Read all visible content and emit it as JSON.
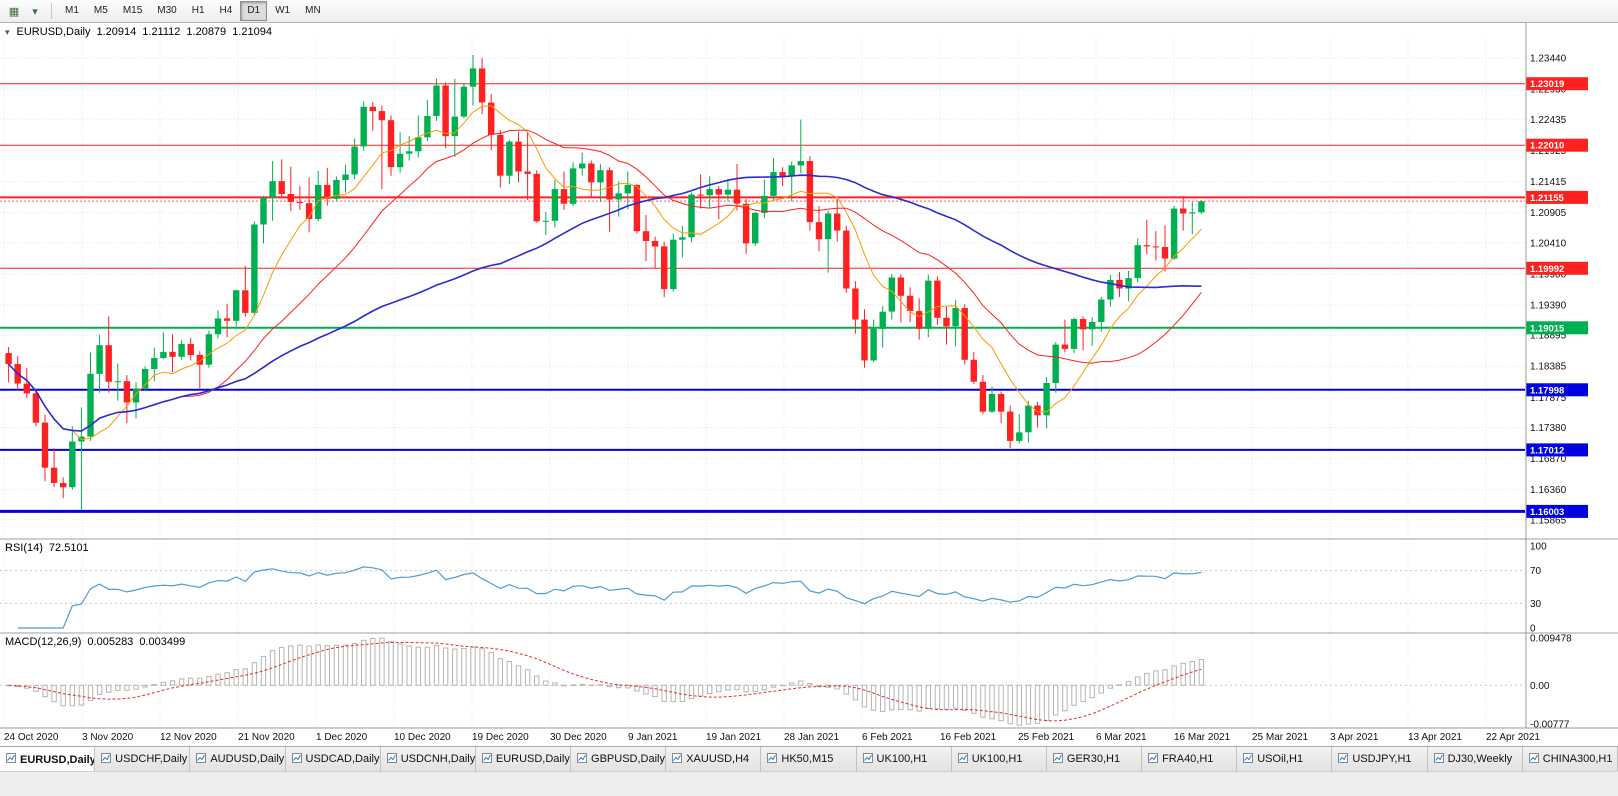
{
  "toolbar": {
    "left_icons": [
      {
        "name": "charts-menu-icon",
        "glyph": "▦"
      },
      {
        "name": "chart-dropdown-icon",
        "glyph": "▾"
      }
    ],
    "timeframes": [
      "M1",
      "M5",
      "M15",
      "M30",
      "H1",
      "H4",
      "D1",
      "W1",
      "MN"
    ],
    "active_timeframe": "D1"
  },
  "chart_title": {
    "collapse_icon": "▾",
    "symbol": "EURUSD,Daily",
    "open": "1.20914",
    "high": "1.21112",
    "low": "1.20879",
    "close": "1.21094"
  },
  "indicators": {
    "rsi": {
      "label": "RSI(14)",
      "value": "72.5101",
      "period": 14,
      "axis_labels": [
        "100",
        "70",
        "30",
        "0"
      ],
      "levels": [
        70,
        30
      ],
      "color": "#4f9bd5"
    },
    "macd": {
      "label": "MACD(12,26,9)",
      "value_main": "0.005283",
      "value_signal": "0.003499",
      "fast": 12,
      "slow": 26,
      "signal": 9,
      "axis_labels": [
        "0.009478",
        "0.00",
        "-0.00777"
      ],
      "axis_values": [
        0.009478,
        0,
        -0.00777
      ],
      "histogram_color": "#b4b4b4",
      "signal_color": "#e03030"
    }
  },
  "chart_data": {
    "type": "candlestick",
    "symbol": "EURUSD",
    "timeframe": "Daily",
    "current_bar": {
      "open": 1.20914,
      "high": 1.21112,
      "low": 1.20879,
      "close": 1.21094
    },
    "y_range": [
      1.156,
      1.2372
    ],
    "bull_color": "#00b050",
    "bear_color": "#ff2020",
    "price_axis_labels": [
      "1.23440",
      "1.22930",
      "1.22435",
      "1.21925",
      "1.21415",
      "1.20905",
      "1.20410",
      "1.19900",
      "1.19390",
      "1.18895",
      "1.18385",
      "1.17875",
      "1.17380",
      "1.16870",
      "1.16360",
      "1.15865"
    ],
    "x_labels": [
      "24 Oct 2020",
      "3 Nov 2020",
      "12 Nov 2020",
      "21 Nov 2020",
      "1 Dec 2020",
      "10 Dec 2020",
      "19 Dec 2020",
      "30 Dec 2020",
      "9 Jan 2021",
      "19 Jan 2021",
      "28 Jan 2021",
      "6 Feb 2021",
      "16 Feb 2021",
      "25 Feb 2021",
      "6 Mar 2021",
      "16 Mar 2021",
      "25 Mar 2021",
      "3 Apr 2021",
      "13 Apr 2021",
      "22 Apr 2021"
    ],
    "horizontal_lines": [
      {
        "price": 1.23019,
        "label": "1.23019",
        "color": "#ff2020",
        "width": 1
      },
      {
        "price": 1.2201,
        "label": "1.22010",
        "color": "#ff2020",
        "width": 1
      },
      {
        "price": 1.21155,
        "label": "1.21155",
        "color": "#ff2020",
        "width": 2
      },
      {
        "price": 1.19992,
        "label": "1.19992",
        "color": "#ff2020",
        "width": 1
      },
      {
        "price": 1.19015,
        "label": "1.19015",
        "color": "#00b050",
        "width": 2
      },
      {
        "price": 1.17998,
        "label": "1.17998",
        "color": "#0000e0",
        "width": 2
      },
      {
        "price": 1.17012,
        "label": "1.17012",
        "color": "#0000e0",
        "width": 2
      },
      {
        "price": 1.16003,
        "label": "1.16003",
        "color": "#0000e0",
        "width": 3
      }
    ],
    "moving_averages": [
      {
        "period": 8,
        "color": "#ff9900",
        "width": 1
      },
      {
        "period": 20,
        "color": "#ff2020",
        "width": 1
      },
      {
        "period": 55,
        "color": "#2b2bd0",
        "width": 1.6
      }
    ],
    "ohlc": [
      [
        1.186,
        1.187,
        1.1812,
        1.1842
      ],
      [
        1.1842,
        1.1855,
        1.18,
        1.181
      ],
      [
        1.181,
        1.1836,
        1.1786,
        1.1794
      ],
      [
        1.1794,
        1.1802,
        1.174,
        1.1746
      ],
      [
        1.1746,
        1.1759,
        1.165,
        1.1672
      ],
      [
        1.1672,
        1.1704,
        1.164,
        1.1647
      ],
      [
        1.1647,
        1.1656,
        1.1622,
        1.164
      ],
      [
        1.164,
        1.174,
        1.1636,
        1.1715
      ],
      [
        1.1715,
        1.1771,
        1.1603,
        1.1723
      ],
      [
        1.1723,
        1.1861,
        1.1716,
        1.1826
      ],
      [
        1.1826,
        1.189,
        1.1795,
        1.1873
      ],
      [
        1.1873,
        1.192,
        1.1795,
        1.1813
      ],
      [
        1.1813,
        1.1843,
        1.1782,
        1.1814
      ],
      [
        1.1814,
        1.1824,
        1.1745,
        1.1779
      ],
      [
        1.1779,
        1.1812,
        1.1753,
        1.1802
      ],
      [
        1.1802,
        1.1838,
        1.1799,
        1.1834
      ],
      [
        1.1834,
        1.1869,
        1.1814,
        1.1852
      ],
      [
        1.1852,
        1.1894,
        1.185,
        1.1862
      ],
      [
        1.1862,
        1.1891,
        1.1829,
        1.1854
      ],
      [
        1.1854,
        1.1882,
        1.1849,
        1.1875
      ],
      [
        1.1875,
        1.1885,
        1.1848,
        1.1857
      ],
      [
        1.1857,
        1.1863,
        1.18,
        1.1841
      ],
      [
        1.1841,
        1.1897,
        1.1836,
        1.1891
      ],
      [
        1.1891,
        1.193,
        1.1884,
        1.1917
      ],
      [
        1.1917,
        1.1941,
        1.1886,
        1.1913
      ],
      [
        1.1913,
        1.1964,
        1.1904,
        1.1963
      ],
      [
        1.1963,
        1.2003,
        1.192,
        1.1926
      ],
      [
        1.1926,
        1.2076,
        1.1923,
        1.2071
      ],
      [
        1.2071,
        1.2118,
        1.204,
        1.2115
      ],
      [
        1.2115,
        1.2175,
        1.2077,
        1.2142
      ],
      [
        1.2142,
        1.2178,
        1.2117,
        1.2121
      ],
      [
        1.2121,
        1.2166,
        1.2093,
        1.2108
      ],
      [
        1.2108,
        1.2134,
        1.2095,
        1.2106
      ],
      [
        1.2106,
        1.2148,
        1.2058,
        1.208
      ],
      [
        1.208,
        1.2159,
        1.2076,
        1.2136
      ],
      [
        1.2136,
        1.2164,
        1.2102,
        1.2113
      ],
      [
        1.2113,
        1.215,
        1.211,
        1.2144
      ],
      [
        1.2144,
        1.2169,
        1.2123,
        1.2153
      ],
      [
        1.2153,
        1.2212,
        1.2145,
        1.2199
      ],
      [
        1.2199,
        1.2273,
        1.2192,
        1.2264
      ],
      [
        1.2264,
        1.2272,
        1.2225,
        1.2257
      ],
      [
        1.2257,
        1.2266,
        1.2129,
        1.2242
      ],
      [
        1.2242,
        1.225,
        1.2151,
        1.2165
      ],
      [
        1.2165,
        1.2222,
        1.2156,
        1.2187
      ],
      [
        1.2187,
        1.2216,
        1.2176,
        1.2191
      ],
      [
        1.2191,
        1.225,
        1.2181,
        1.2214
      ],
      [
        1.2214,
        1.2275,
        1.2208,
        1.2249
      ],
      [
        1.2249,
        1.231,
        1.2241,
        1.2299
      ],
      [
        1.2299,
        1.2304,
        1.2196,
        1.2216
      ],
      [
        1.2216,
        1.231,
        1.2182,
        1.2248
      ],
      [
        1.2248,
        1.2303,
        1.2245,
        1.2297
      ],
      [
        1.2297,
        1.2349,
        1.2266,
        1.2327
      ],
      [
        1.2327,
        1.2344,
        1.2252,
        1.2271
      ],
      [
        1.2271,
        1.2285,
        1.2193,
        1.2218
      ],
      [
        1.2218,
        1.2226,
        1.2132,
        1.2151
      ],
      [
        1.2151,
        1.221,
        1.2137,
        1.2207
      ],
      [
        1.2207,
        1.2223,
        1.214,
        1.2158
      ],
      [
        1.2158,
        1.2222,
        1.2111,
        1.2154
      ],
      [
        1.2154,
        1.216,
        1.2074,
        1.2076
      ],
      [
        1.2076,
        1.2092,
        1.2054,
        1.2077
      ],
      [
        1.2077,
        1.2144,
        1.2066,
        1.2129
      ],
      [
        1.2129,
        1.2158,
        1.2095,
        1.2105
      ],
      [
        1.2105,
        1.2173,
        1.2101,
        1.2163
      ],
      [
        1.2163,
        1.2189,
        1.2151,
        1.2171
      ],
      [
        1.2171,
        1.2176,
        1.2116,
        1.214
      ],
      [
        1.214,
        1.217,
        1.2108,
        1.216
      ],
      [
        1.216,
        1.2165,
        1.2059,
        1.2112
      ],
      [
        1.2112,
        1.2142,
        1.2084,
        1.2122
      ],
      [
        1.2122,
        1.2158,
        1.2096,
        1.2136
      ],
      [
        1.2136,
        1.2137,
        1.2056,
        1.206
      ],
      [
        1.206,
        1.2087,
        1.2011,
        1.2044
      ],
      [
        1.2044,
        1.2051,
        1.1999,
        1.2035
      ],
      [
        1.2035,
        1.2043,
        1.1952,
        1.1965
      ],
      [
        1.1965,
        1.2056,
        1.1961,
        1.2046
      ],
      [
        1.2046,
        1.2069,
        1.2017,
        1.205
      ],
      [
        1.205,
        1.2123,
        1.2042,
        1.212
      ],
      [
        1.212,
        1.2153,
        1.2097,
        1.2119
      ],
      [
        1.2119,
        1.215,
        1.2099,
        1.2129
      ],
      [
        1.2129,
        1.2134,
        1.208,
        1.212
      ],
      [
        1.212,
        1.2145,
        1.2109,
        1.2128
      ],
      [
        1.2128,
        1.217,
        1.2094,
        1.2105
      ],
      [
        1.2105,
        1.2113,
        1.2023,
        1.204
      ],
      [
        1.204,
        1.2092,
        1.2036,
        1.209
      ],
      [
        1.209,
        1.2145,
        1.2082,
        1.2118
      ],
      [
        1.2118,
        1.218,
        1.211,
        1.2157
      ],
      [
        1.2157,
        1.2165,
        1.2134,
        1.215
      ],
      [
        1.215,
        1.2174,
        1.2109,
        1.2168
      ],
      [
        1.2168,
        1.2243,
        1.2155,
        1.2175
      ],
      [
        1.2175,
        1.2183,
        1.2061,
        1.2075
      ],
      [
        1.2075,
        1.2101,
        1.2027,
        1.2047
      ],
      [
        1.2047,
        1.2094,
        1.1992,
        1.2089
      ],
      [
        1.2089,
        1.2113,
        1.2043,
        1.2061
      ],
      [
        1.2061,
        1.2069,
        1.1959,
        1.1966
      ],
      [
        1.1966,
        1.1978,
        1.1892,
        1.1915
      ],
      [
        1.1915,
        1.1932,
        1.1836,
        1.1848
      ],
      [
        1.1848,
        1.1915,
        1.1845,
        1.19
      ],
      [
        1.19,
        1.1937,
        1.1869,
        1.1928
      ],
      [
        1.1928,
        1.199,
        1.1915,
        1.1984
      ],
      [
        1.1984,
        1.1989,
        1.191,
        1.1954
      ],
      [
        1.1954,
        1.1968,
        1.1911,
        1.1929
      ],
      [
        1.1929,
        1.195,
        1.1882,
        1.19
      ],
      [
        1.19,
        1.1989,
        1.1886,
        1.1979
      ],
      [
        1.1979,
        1.1986,
        1.1906,
        1.1918
      ],
      [
        1.1918,
        1.1936,
        1.1874,
        1.1904
      ],
      [
        1.1904,
        1.1947,
        1.1871,
        1.1934
      ],
      [
        1.1934,
        1.194,
        1.1841,
        1.1849
      ],
      [
        1.1849,
        1.1862,
        1.1809,
        1.1813
      ],
      [
        1.1813,
        1.1824,
        1.176,
        1.1764
      ],
      [
        1.1764,
        1.1805,
        1.1762,
        1.1793
      ],
      [
        1.1793,
        1.1797,
        1.1745,
        1.1764
      ],
      [
        1.1764,
        1.1774,
        1.1704,
        1.1716
      ],
      [
        1.1716,
        1.176,
        1.1712,
        1.173
      ],
      [
        1.173,
        1.1782,
        1.1713,
        1.1774
      ],
      [
        1.1774,
        1.178,
        1.1738,
        1.1758
      ],
      [
        1.1758,
        1.1821,
        1.1737,
        1.1811
      ],
      [
        1.1811,
        1.1878,
        1.1795,
        1.1874
      ],
      [
        1.1874,
        1.1915,
        1.1861,
        1.1867
      ],
      [
        1.1867,
        1.1918,
        1.186,
        1.1916
      ],
      [
        1.1916,
        1.192,
        1.1865,
        1.1899
      ],
      [
        1.1899,
        1.1919,
        1.1872,
        1.1911
      ],
      [
        1.1911,
        1.1952,
        1.1895,
        1.1948
      ],
      [
        1.1948,
        1.1988,
        1.1936,
        1.198
      ],
      [
        1.198,
        1.1993,
        1.1952,
        1.1966
      ],
      [
        1.1966,
        1.1995,
        1.1945,
        1.1983
      ],
      [
        1.1983,
        1.2048,
        1.1976,
        1.2037
      ],
      [
        1.2037,
        1.2079,
        1.2022,
        1.2035
      ],
      [
        1.2035,
        1.206,
        1.2012,
        1.2034
      ],
      [
        1.2034,
        1.207,
        1.1994,
        1.2015
      ],
      [
        1.2015,
        1.2101,
        1.2013,
        1.2097
      ],
      [
        1.2097,
        1.2117,
        1.2061,
        1.2089
      ],
      [
        1.2089,
        1.2108,
        1.2055,
        1.2091
      ],
      [
        1.2091,
        1.2111,
        1.2088,
        1.2109
      ]
    ]
  },
  "bottom_tabs": [
    {
      "label": "EURUSD,Daily",
      "active": true
    },
    {
      "label": "USDCHF,Daily",
      "active": false
    },
    {
      "label": "AUDUSD,Daily",
      "active": false
    },
    {
      "label": "USDCAD,Daily",
      "active": false
    },
    {
      "label": "USDCNH,Daily",
      "active": false
    },
    {
      "label": "EURUSD,Daily",
      "active": false
    },
    {
      "label": "GBPUSD,Daily",
      "active": false
    },
    {
      "label": "XAUUSD,H4",
      "active": false
    },
    {
      "label": "HK50,M15",
      "active": false
    },
    {
      "label": "UK100,H1",
      "active": false
    },
    {
      "label": "UK100,H1",
      "active": false
    },
    {
      "label": "GER30,H1",
      "active": false
    },
    {
      "label": "FRA40,H1",
      "active": false
    },
    {
      "label": "USOil,H1",
      "active": false
    },
    {
      "label": "USDJPY,H1",
      "active": false
    },
    {
      "label": "DJ30,Weekly",
      "active": false
    },
    {
      "label": "CHINA300,H1",
      "active": false
    }
  ]
}
